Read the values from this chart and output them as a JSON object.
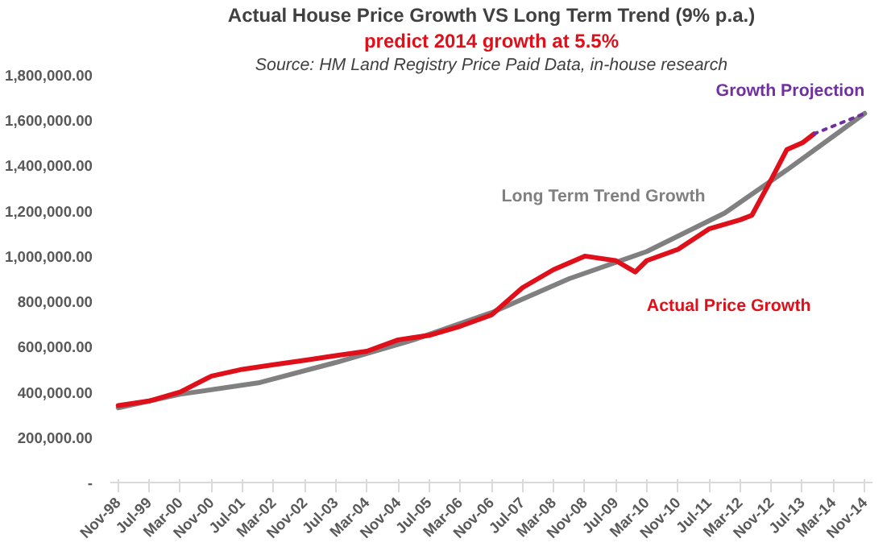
{
  "chart_data": {
    "type": "line",
    "title": "Actual House Price Growth VS Long Term Trend (9% p.a.)",
    "subtitle": "predict 2014 growth at 5.5%",
    "annotations": [
      "Source: HM Land Registry Price Paid Data, in-house research"
    ],
    "series": [
      {
        "name": "Long Term Trend Growth",
        "color": "#808080",
        "x": [
          "1998-11",
          "2000-03",
          "2001-11",
          "2003-07",
          "2005-03",
          "2006-11",
          "2008-07",
          "2010-03",
          "2011-11",
          "2013-03",
          "2014-11"
        ],
        "values": [
          330000,
          390000,
          440000,
          530000,
          630000,
          750000,
          900000,
          1020000,
          1190000,
          1380000,
          1630000
        ]
      },
      {
        "name": "Actual Price Growth",
        "color": "#e0101a",
        "x": [
          "1998-11",
          "1999-07",
          "2000-03",
          "2000-11",
          "2001-07",
          "2002-03",
          "2002-11",
          "2003-07",
          "2004-03",
          "2004-11",
          "2005-07",
          "2006-03",
          "2006-11",
          "2007-07",
          "2008-03",
          "2008-11",
          "2009-07",
          "2009-12",
          "2010-03",
          "2010-11",
          "2011-07",
          "2012-03",
          "2012-06",
          "2012-11",
          "2013-03",
          "2013-07",
          "2013-10"
        ],
        "values": [
          340000,
          360000,
          400000,
          470000,
          500000,
          520000,
          540000,
          560000,
          580000,
          630000,
          650000,
          690000,
          740000,
          860000,
          940000,
          1000000,
          980000,
          930000,
          980000,
          1030000,
          1120000,
          1160000,
          1180000,
          1340000,
          1470000,
          1500000,
          1540000
        ]
      },
      {
        "name": "Growth Projection",
        "color": "#7030a0",
        "line_style": "dotted",
        "x": [
          "2013-10",
          "2014-11"
        ],
        "values": [
          1540000,
          1630000
        ]
      }
    ],
    "xlim": [
      "1998-09",
      "2015-01"
    ],
    "xticks": [
      {
        "value": "1998-11",
        "label": "Nov-98"
      },
      {
        "value": "1999-07",
        "label": "Jul-99"
      },
      {
        "value": "2000-03",
        "label": "Mar-00"
      },
      {
        "value": "2000-11",
        "label": "Nov-00"
      },
      {
        "value": "2001-07",
        "label": "Jul-01"
      },
      {
        "value": "2002-03",
        "label": "Mar-02"
      },
      {
        "value": "2002-11",
        "label": "Nov-02"
      },
      {
        "value": "2003-07",
        "label": "Jul-03"
      },
      {
        "value": "2004-03",
        "label": "Mar-04"
      },
      {
        "value": "2004-11",
        "label": "Nov-04"
      },
      {
        "value": "2005-07",
        "label": "Jul-05"
      },
      {
        "value": "2006-03",
        "label": "Mar-06"
      },
      {
        "value": "2006-11",
        "label": "Nov-06"
      },
      {
        "value": "2007-07",
        "label": "Jul-07"
      },
      {
        "value": "2008-03",
        "label": "Mar-08"
      },
      {
        "value": "2008-11",
        "label": "Nov-08"
      },
      {
        "value": "2009-07",
        "label": "Jul-09"
      },
      {
        "value": "2010-03",
        "label": "Mar-10"
      },
      {
        "value": "2010-11",
        "label": "Nov-10"
      },
      {
        "value": "2011-07",
        "label": "Jul-11"
      },
      {
        "value": "2012-03",
        "label": "Mar-12"
      },
      {
        "value": "2012-11",
        "label": "Nov-12"
      },
      {
        "value": "2013-07",
        "label": "Jul-13"
      },
      {
        "value": "2014-03",
        "label": "Mar-14"
      },
      {
        "value": "2014-11",
        "label": "Nov-14"
      }
    ],
    "ylim": [
      0,
      1800000
    ],
    "yticks": [
      {
        "value": 0,
        "label": "-"
      },
      {
        "value": 200000,
        "label": "200,000.00"
      },
      {
        "value": 400000,
        "label": "400,000.00"
      },
      {
        "value": 600000,
        "label": "600,000.00"
      },
      {
        "value": 800000,
        "label": "800,000.00"
      },
      {
        "value": 1000000,
        "label": "1,000,000.00"
      },
      {
        "value": 1200000,
        "label": "1,200,000.00"
      },
      {
        "value": 1400000,
        "label": "1,400,000.00"
      },
      {
        "value": 1600000,
        "label": "1,600,000.00"
      },
      {
        "value": 1800000,
        "label": "1,800,000.00"
      }
    ],
    "grid": false,
    "marker": "none",
    "line_style": "solid"
  }
}
